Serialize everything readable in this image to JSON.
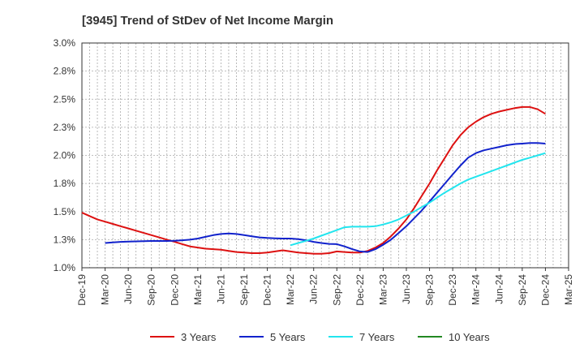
{
  "chart_data": {
    "type": "line",
    "title": "[3945]  Trend of StDev of Net Income Margin",
    "xlabel": "",
    "ylabel": "",
    "x_ticks": [
      "Dec-19",
      "Mar-20",
      "Jun-20",
      "Sep-20",
      "Dec-20",
      "Mar-21",
      "Jun-21",
      "Sep-21",
      "Dec-21",
      "Mar-22",
      "Jun-22",
      "Sep-22",
      "Dec-22",
      "Mar-23",
      "Jun-23",
      "Sep-23",
      "Dec-23",
      "Mar-24",
      "Jun-24",
      "Sep-24",
      "Dec-24",
      "Mar-25"
    ],
    "y_ticks": [
      "1.0%",
      "1.3%",
      "1.5%",
      "1.8%",
      "2.0%",
      "2.3%",
      "2.5%",
      "2.8%",
      "3.0%"
    ],
    "ylim": [
      1.0,
      3.0
    ],
    "grid": true,
    "legend_position": "bottom",
    "colors": {
      "3 Years": "#dd1111",
      "5 Years": "#1122cc",
      "7 Years": "#22e5ee",
      "10 Years": "#228822"
    },
    "series": [
      {
        "name": "3 Years",
        "x": [
          "Dec-19",
          "Jan-20",
          "Feb-20",
          "Mar-20",
          "Apr-20",
          "May-20",
          "Jun-20",
          "Jul-20",
          "Aug-20",
          "Sep-20",
          "Oct-20",
          "Nov-20",
          "Dec-20",
          "Jan-21",
          "Feb-21",
          "Mar-21",
          "Apr-21",
          "May-21",
          "Jun-21",
          "Jul-21",
          "Aug-21",
          "Sep-21",
          "Oct-21",
          "Nov-21",
          "Dec-21",
          "Jan-22",
          "Feb-22",
          "Mar-22",
          "Apr-22",
          "May-22",
          "Jun-22",
          "Jul-22",
          "Aug-22",
          "Sep-22",
          "Oct-22",
          "Nov-22",
          "Dec-22",
          "Jan-23",
          "Feb-23",
          "Mar-23",
          "Apr-23",
          "May-23",
          "Jun-23",
          "Jul-23",
          "Aug-23",
          "Sep-23",
          "Oct-23",
          "Nov-23",
          "Dec-23",
          "Jan-24",
          "Feb-24",
          "Mar-24",
          "Apr-24",
          "May-24",
          "Jun-24",
          "Jul-24",
          "Aug-24",
          "Sep-24",
          "Oct-24",
          "Nov-24",
          "Dec-24"
        ],
        "values": [
          1.49,
          1.46,
          1.43,
          1.41,
          1.39,
          1.37,
          1.35,
          1.33,
          1.31,
          1.29,
          1.27,
          1.25,
          1.23,
          1.21,
          1.19,
          1.18,
          1.17,
          1.165,
          1.16,
          1.15,
          1.14,
          1.135,
          1.13,
          1.13,
          1.135,
          1.145,
          1.155,
          1.145,
          1.135,
          1.13,
          1.125,
          1.125,
          1.13,
          1.145,
          1.14,
          1.135,
          1.135,
          1.15,
          1.18,
          1.22,
          1.28,
          1.35,
          1.43,
          1.53,
          1.64,
          1.75,
          1.87,
          1.98,
          2.09,
          2.18,
          2.25,
          2.3,
          2.34,
          2.37,
          2.39,
          2.405,
          2.42,
          2.43,
          2.43,
          2.41,
          2.37
        ]
      },
      {
        "name": "5 Years",
        "x": [
          "Mar-20",
          "Apr-20",
          "May-20",
          "Jun-20",
          "Jul-20",
          "Aug-20",
          "Sep-20",
          "Oct-20",
          "Nov-20",
          "Dec-20",
          "Jan-21",
          "Feb-21",
          "Mar-21",
          "Apr-21",
          "May-21",
          "Jun-21",
          "Jul-21",
          "Aug-21",
          "Sep-21",
          "Oct-21",
          "Nov-21",
          "Dec-21",
          "Jan-22",
          "Feb-22",
          "Mar-22",
          "Apr-22",
          "May-22",
          "Jun-22",
          "Jul-22",
          "Aug-22",
          "Sep-22",
          "Oct-22",
          "Nov-22",
          "Dec-22",
          "Jan-23",
          "Feb-23",
          "Mar-23",
          "Apr-23",
          "May-23",
          "Jun-23",
          "Jul-23",
          "Aug-23",
          "Sep-23",
          "Oct-23",
          "Nov-23",
          "Dec-23",
          "Jan-24",
          "Feb-24",
          "Mar-24",
          "Apr-24",
          "May-24",
          "Jun-24",
          "Jul-24",
          "Aug-24",
          "Sep-24",
          "Oct-24",
          "Nov-24",
          "Dec-24"
        ],
        "values": [
          1.22,
          1.225,
          1.23,
          1.233,
          1.235,
          1.237,
          1.238,
          1.238,
          1.238,
          1.24,
          1.245,
          1.25,
          1.26,
          1.275,
          1.29,
          1.3,
          1.305,
          1.3,
          1.29,
          1.28,
          1.27,
          1.265,
          1.262,
          1.26,
          1.26,
          1.255,
          1.245,
          1.23,
          1.22,
          1.212,
          1.21,
          1.19,
          1.165,
          1.145,
          1.14,
          1.165,
          1.205,
          1.25,
          1.31,
          1.37,
          1.44,
          1.51,
          1.59,
          1.67,
          1.75,
          1.83,
          1.91,
          1.98,
          2.02,
          2.045,
          2.06,
          2.075,
          2.09,
          2.1,
          2.105,
          2.11,
          2.11,
          2.105
        ]
      },
      {
        "name": "7 Years",
        "x": [
          "Mar-22",
          "Apr-22",
          "May-22",
          "Jun-22",
          "Jul-22",
          "Aug-22",
          "Sep-22",
          "Oct-22",
          "Nov-22",
          "Dec-22",
          "Jan-23",
          "Feb-23",
          "Mar-23",
          "Apr-23",
          "May-23",
          "Jun-23",
          "Jul-23",
          "Aug-23",
          "Sep-23",
          "Oct-23",
          "Nov-23",
          "Dec-23",
          "Jan-24",
          "Feb-24",
          "Mar-24",
          "Apr-24",
          "May-24",
          "Jun-24",
          "Jul-24",
          "Aug-24",
          "Sep-24",
          "Oct-24",
          "Nov-24",
          "Dec-24"
        ],
        "values": [
          1.2,
          1.22,
          1.24,
          1.26,
          1.285,
          1.31,
          1.335,
          1.36,
          1.365,
          1.365,
          1.365,
          1.37,
          1.385,
          1.405,
          1.43,
          1.465,
          1.5,
          1.54,
          1.58,
          1.625,
          1.67,
          1.71,
          1.75,
          1.785,
          1.81,
          1.835,
          1.86,
          1.885,
          1.91,
          1.935,
          1.96,
          1.98,
          2.0,
          2.02
        ]
      },
      {
        "name": "10 Years",
        "x": [],
        "values": []
      }
    ]
  }
}
